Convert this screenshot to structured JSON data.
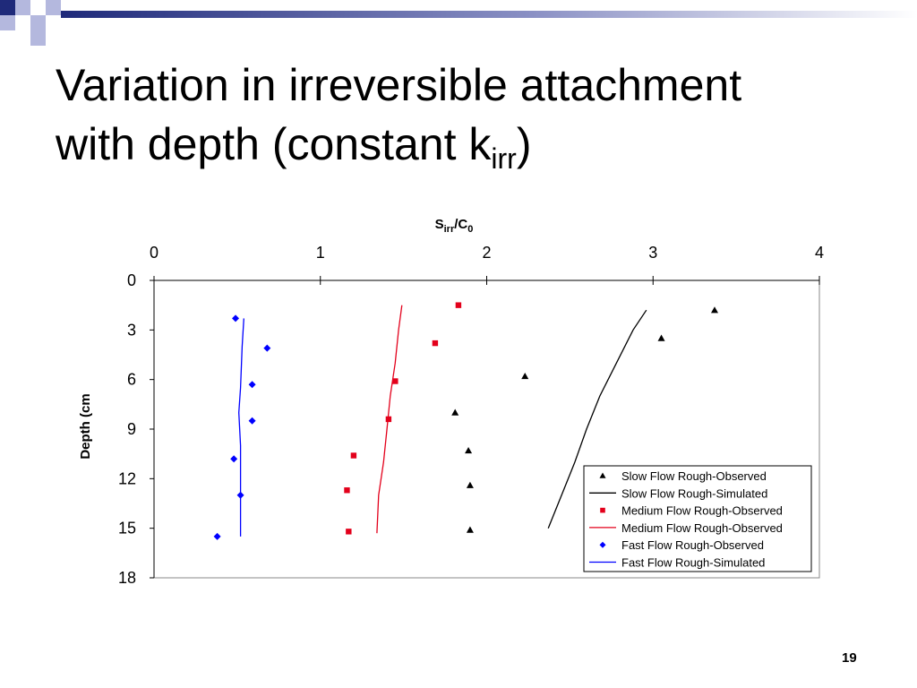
{
  "slide": {
    "title_line1": "Variation in irreversible attachment",
    "title_line2_main": "with depth (constant k",
    "title_line2_sub": "irr",
    "title_line2_end": ")",
    "slide_number": "19",
    "colors": {
      "header_blue": "#1f2a7a",
      "header_light": "#b4b8de"
    }
  },
  "chart_data": {
    "type": "scatter",
    "xlabel_main": "S",
    "xlabel_sub1": "irr",
    "xlabel_mid": "/C",
    "xlabel_sub2": "0",
    "ylabel": "Depth (cm",
    "xlim": [
      0,
      4
    ],
    "ylim": [
      18,
      0
    ],
    "x_ticks": [
      "0",
      "1",
      "2",
      "3",
      "4"
    ],
    "y_ticks": [
      "0",
      "3",
      "6",
      "9",
      "12",
      "15",
      "18"
    ],
    "x_axis_position": "top",
    "y_reversed": true,
    "grid": false,
    "legend_position": "bottom-right",
    "series": [
      {
        "name": "Slow Flow Rough-Observed",
        "kind": "points",
        "marker": "triangle",
        "color": "#000000",
        "points": [
          [
            3.37,
            1.8
          ],
          [
            3.05,
            3.5
          ],
          [
            2.23,
            5.8
          ],
          [
            1.81,
            8.0
          ],
          [
            1.89,
            10.3
          ],
          [
            1.9,
            12.4
          ],
          [
            1.9,
            15.1
          ]
        ]
      },
      {
        "name": "Slow Flow Rough-Simulated",
        "kind": "line",
        "color": "#000000",
        "points": [
          [
            2.96,
            1.8
          ],
          [
            2.88,
            3.0
          ],
          [
            2.78,
            5.0
          ],
          [
            2.68,
            7.0
          ],
          [
            2.6,
            9.0
          ],
          [
            2.53,
            11.0
          ],
          [
            2.45,
            13.0
          ],
          [
            2.37,
            15.0
          ]
        ]
      },
      {
        "name": "Medium Flow Rough-Observed",
        "kind": "points",
        "marker": "square",
        "color": "#e3001b",
        "points": [
          [
            1.83,
            1.5
          ],
          [
            1.69,
            3.8
          ],
          [
            1.45,
            6.1
          ],
          [
            1.41,
            8.4
          ],
          [
            1.2,
            10.6
          ],
          [
            1.16,
            12.7
          ],
          [
            1.17,
            15.2
          ]
        ]
      },
      {
        "name": "Medium Flow Rough-Observed",
        "kind": "line",
        "color": "#e3001b",
        "points": [
          [
            1.49,
            1.5
          ],
          [
            1.47,
            3.0
          ],
          [
            1.45,
            5.0
          ],
          [
            1.42,
            7.0
          ],
          [
            1.4,
            9.0
          ],
          [
            1.38,
            11.0
          ],
          [
            1.35,
            13.0
          ],
          [
            1.34,
            15.3
          ]
        ]
      },
      {
        "name": "Fast Flow Rough-Observed",
        "kind": "points",
        "marker": "diamond",
        "color": "#0000ff",
        "points": [
          [
            0.49,
            2.3
          ],
          [
            0.68,
            4.1
          ],
          [
            0.59,
            6.3
          ],
          [
            0.59,
            8.5
          ],
          [
            0.48,
            10.8
          ],
          [
            0.52,
            13.0
          ],
          [
            0.38,
            15.5
          ]
        ]
      },
      {
        "name": "Fast Flow Rough-Simulated",
        "kind": "line",
        "color": "#0000ff",
        "points": [
          [
            0.54,
            2.3
          ],
          [
            0.53,
            4.0
          ],
          [
            0.52,
            6.5
          ],
          [
            0.51,
            8.0
          ],
          [
            0.52,
            10.0
          ],
          [
            0.52,
            12.0
          ],
          [
            0.52,
            15.5
          ]
        ]
      }
    ]
  }
}
